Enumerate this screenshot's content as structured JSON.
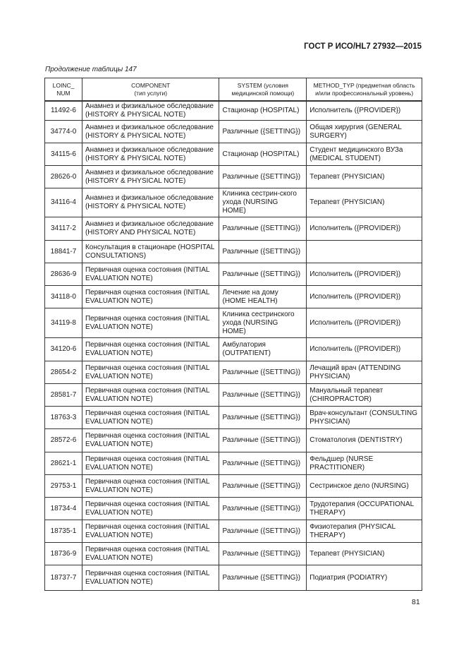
{
  "header": {
    "doc_id": "ГОСТ Р ИСО/HL7 27932—2015"
  },
  "caption": "Продолжение таблицы 147",
  "table": {
    "columns": [
      [
        "LOINC_",
        "NUM"
      ],
      [
        "COMPONENT",
        "(тип услуги)"
      ],
      [
        "SYSTEM (условия",
        "медицинской помощи)"
      ],
      [
        "METHOD_TYP (предметная область",
        "и/или профессиональный уровень)"
      ]
    ],
    "rows": [
      [
        "11492-6",
        "Анамнез и физикальное обследование (HISTORY & PHYSICAL NOTE)",
        "Стационар (HOSPITAL)",
        "Исполнитель ({PROVIDER})"
      ],
      [
        "34774-0",
        "Анамнез и физикальное обследование (HISTORY & PHYSICAL NOTE)",
        "Различные ({SETTING})",
        "Общая хирургия (GENERAL SURGERY)"
      ],
      [
        "34115-6",
        "Анамнез и физикальное обследование (HISTORY & PHYSICAL NOTE)",
        "Стационар (HOSPITAL)",
        "Студент медицинского ВУЗа (MEDICAL STUDENT)"
      ],
      [
        "28626-0",
        "Анамнез и физикальное обследование (HISTORY & PHYSICAL NOTE)",
        "Различные ({SETTING})",
        "Терапевт (PHYSICIAN)"
      ],
      [
        "34116-4",
        "Анамнез и физикальное обследование (HISTORY & PHYSICAL NOTE)",
        "Клиника сестрин-ского ухода (NURSING HOME)",
        "Терапевт (PHYSICIAN)"
      ],
      [
        "34117-2",
        "Анамнез и физикальное обследование (HISTORY AND PHYSICAL NOTE)",
        "Различные ({SETTING})",
        "Исполнитель ({PROVIDER})"
      ],
      [
        "18841-7",
        "Консультация в стационаре (HOSPITAL CONSULTATIONS)",
        "Различные ({SETTING})",
        ""
      ],
      [
        "28636-9",
        "Первичная оценка состояния (INITIAL EVALUATION NOTE)",
        "Различные ({SETTING})",
        "Исполнитель ({PROVIDER})"
      ],
      [
        "34118-0",
        "Первичная оценка состояния (INITIAL EVALUATION NOTE)",
        "Лечение на дому (HOME HEALTH)",
        "Исполнитель ({PROVIDER})"
      ],
      [
        "34119-8",
        "Первичная оценка состояния (INITIAL EVALUATION NOTE)",
        "Клиника сестринского ухода (NURSING HOME)",
        "Исполнитель ({PROVIDER})"
      ],
      [
        "34120-6",
        "Первичная оценка состояния (INITIAL EVALUATION NOTE)",
        "Амбулатория (OUTPATIENT)",
        "Исполнитель ({PROVIDER})"
      ],
      [
        "28654-2",
        "Первичная оценка состояния (INITIAL EVALUATION NOTE)",
        "Различные ({SETTING})",
        "Лечащий врач (ATTENDING PHYSICIAN)"
      ],
      [
        "28581-7",
        "Первичная оценка состояния (INITIAL EVALUATION NOTE)",
        "Различные ({SETTING})",
        "Мануальный терапевт (CHIROPRACTOR)"
      ],
      [
        "18763-3",
        "Первичная оценка состояния (INITIAL EVALUATION NOTE)",
        "Различные ({SETTING})",
        "Врач-консультант (CONSULTING PHYSICIAN)"
      ],
      [
        "28572-6",
        "Первичная оценка состояния (INITIAL EVALUATION NOTE)",
        "Различные ({SETTING})",
        "Стоматология (DENTISTRY)"
      ],
      [
        "28621-1",
        "Первичная оценка состояния (INITIAL EVALUATION NOTE)",
        "Различные ({SETTING})",
        "Фельдшер (NURSE PRACTITIONER)"
      ],
      [
        "29753-1",
        "Первичная оценка состояния (INITIAL EVALUATION NOTE)",
        "Различные ({SETTING})",
        "Сестринское дело (NURSING)"
      ],
      [
        "18734-4",
        "Первичная оценка состояния (INITIAL EVALUATION NOTE)",
        "Различные ({SETTING})",
        "Трудотерапия (OCCUPATIONAL THERAPY)"
      ],
      [
        "18735-1",
        "Первичная оценка состояния (INITIAL EVALUATION NOTE)",
        "Различные ({SETTING})",
        "Физиотерапия (PHYSICAL THERAPY)"
      ],
      [
        "18736-9",
        "Первичная оценка состояния (INITIAL EVALUATION NOTE)",
        "Различные ({SETTING})",
        "Терапевт (PHYSICIAN)"
      ],
      [
        "18737-7",
        "Первичная оценка состояния (INITIAL EVALUATION NOTE)",
        "Различные ({SETTING})",
        "Подиатрия (PODIATRY)"
      ]
    ]
  },
  "page_number": "81"
}
